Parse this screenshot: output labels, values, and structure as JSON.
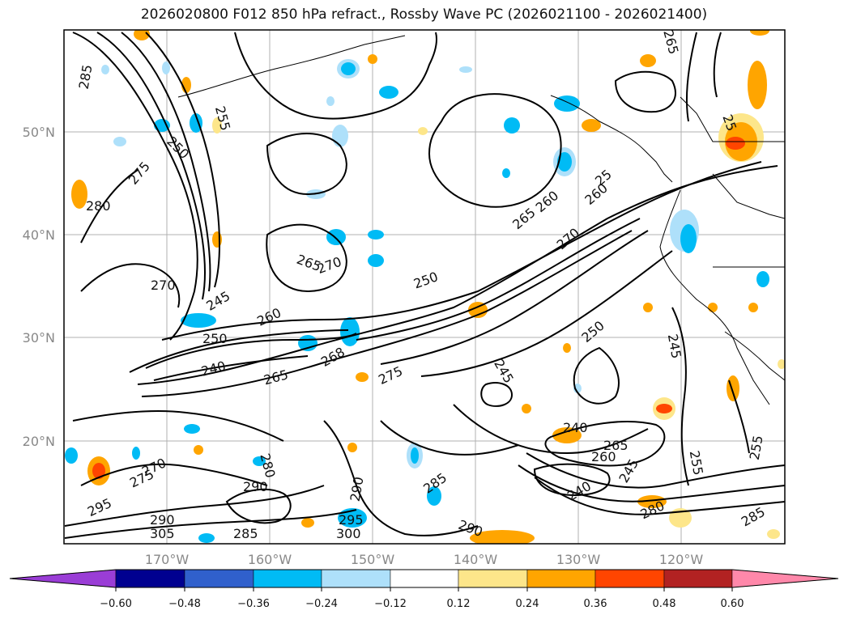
{
  "title": "2026020800 F012 850 hPa refract., Rossby Wave PC (2026021100 - 2026021400)",
  "lat_labels": [
    "50°N",
    "40°N",
    "30°N",
    "20°N"
  ],
  "lon_labels": [
    "170°W",
    "160°W",
    "150°W",
    "140°W",
    "130°W",
    "120°W"
  ],
  "colorbar": {
    "colors": [
      "#9a3dd6",
      "#000090",
      "#3060cc",
      "#00bbf5",
      "#aee0fa",
      "#ffffff",
      "#fde68a",
      "#ffa500",
      "#ff4500",
      "#b22222",
      "#ff88aa"
    ],
    "ticks": [
      "−0.60",
      "−0.48",
      "−0.36",
      "−0.24",
      "−0.12",
      "0.12",
      "0.24",
      "0.36",
      "0.48",
      "0.60"
    ]
  },
  "contour_labels": [
    "285",
    "280",
    "275",
    "270",
    "265",
    "260",
    "255",
    "250",
    "245",
    "240",
    "290",
    "295",
    "300",
    "305"
  ]
}
